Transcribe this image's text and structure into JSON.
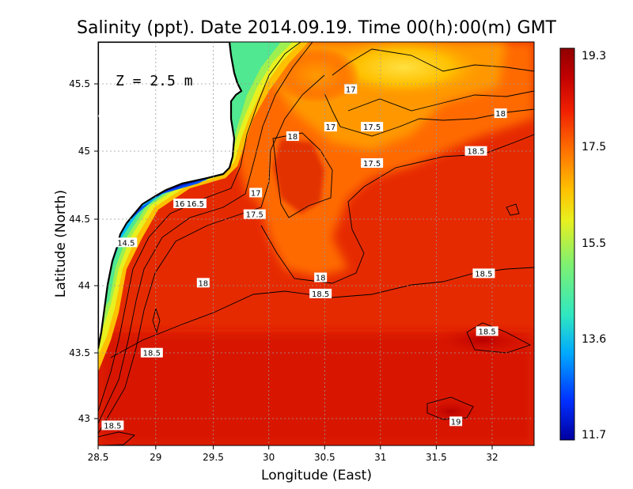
{
  "chart_data": {
    "type": "heatmap",
    "title": "Salinity (ppt). Date 2014.09.19. Time 00(h):00(m) GMT",
    "xlabel": "Longitude (East)",
    "ylabel": "Latitude (North)",
    "xlim": [
      28.5,
      32.4
    ],
    "ylim": [
      42.8,
      45.8
    ],
    "x_ticks": [
      "28.5",
      "29",
      "29.5",
      "30",
      "30.5",
      "31",
      "31.5",
      "32"
    ],
    "y_ticks": [
      "43",
      "43.5",
      "44",
      "44.5",
      "45",
      "45.5"
    ],
    "annotation": "Z = 2.5 m",
    "grid": true,
    "colorbar": {
      "min": 11.7,
      "max": 19.3,
      "ticks": [
        "19.3",
        "17.5",
        "15.5",
        "13.6",
        "11.7"
      ],
      "colors": [
        "#0000a0",
        "#0030ff",
        "#00a8ff",
        "#30e8c0",
        "#80f070",
        "#e8f020",
        "#ffc000",
        "#ff7000",
        "#f02000",
        "#c00000",
        "#900000"
      ]
    },
    "contour_labels": [
      {
        "text": "17",
        "lon": 30.76,
        "lat": 45.45
      },
      {
        "text": "17",
        "lon": 30.58,
        "lat": 45.17
      },
      {
        "text": "17.5",
        "lon": 30.95,
        "lat": 45.17
      },
      {
        "text": "18",
        "lon": 32.1,
        "lat": 45.27
      },
      {
        "text": "18",
        "lon": 30.24,
        "lat": 45.1
      },
      {
        "text": "18.5",
        "lon": 31.88,
        "lat": 44.99
      },
      {
        "text": "17.5",
        "lon": 30.95,
        "lat": 44.9
      },
      {
        "text": "17",
        "lon": 29.91,
        "lat": 44.68
      },
      {
        "text": "16",
        "lon": 29.23,
        "lat": 44.6
      },
      {
        "text": "16.5",
        "lon": 29.37,
        "lat": 44.6
      },
      {
        "text": "17.5",
        "lon": 29.9,
        "lat": 44.52
      },
      {
        "text": "14.5",
        "lon": 28.75,
        "lat": 44.31
      },
      {
        "text": "18",
        "lon": 30.49,
        "lat": 44.05
      },
      {
        "text": "18",
        "lon": 29.44,
        "lat": 44.01
      },
      {
        "text": "18.5",
        "lon": 30.49,
        "lat": 43.93
      },
      {
        "text": "18.5",
        "lon": 31.95,
        "lat": 44.08
      },
      {
        "text": "18.5",
        "lon": 31.98,
        "lat": 43.65
      },
      {
        "text": "18.5",
        "lon": 28.98,
        "lat": 43.49
      },
      {
        "text": "19",
        "lon": 31.7,
        "lat": 42.98
      },
      {
        "text": "18.5",
        "lon": 28.63,
        "lat": 42.95
      }
    ]
  }
}
